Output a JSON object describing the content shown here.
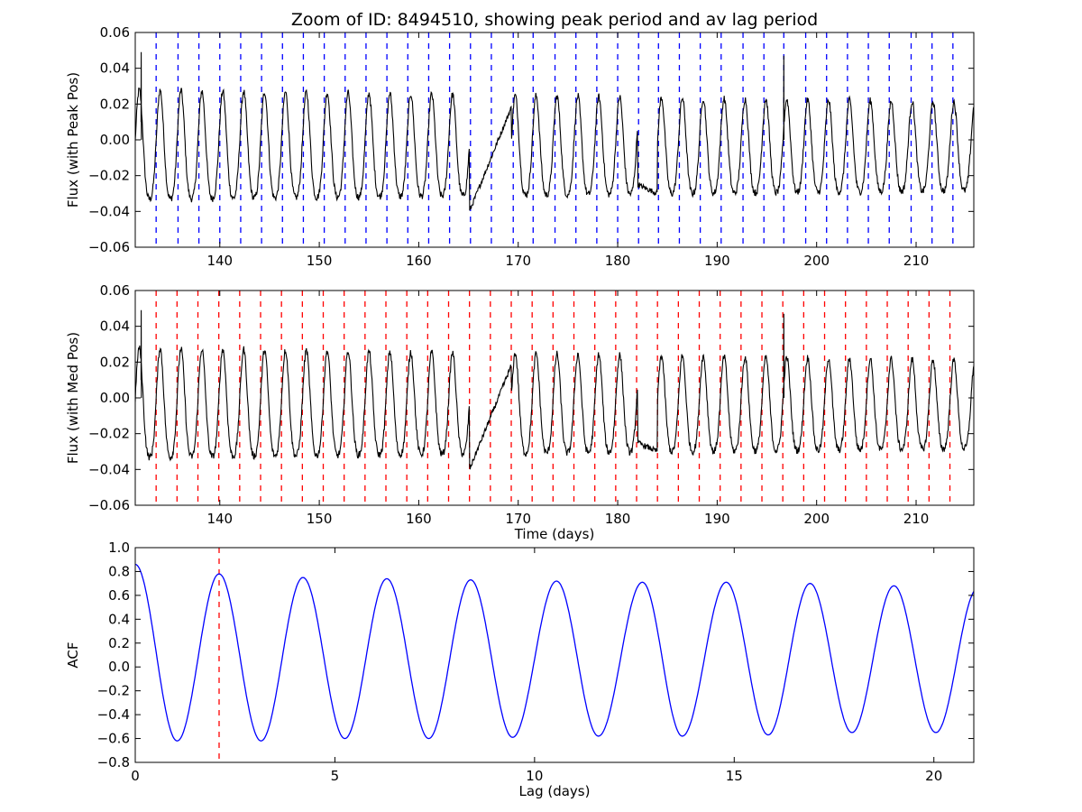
{
  "figure_title": "Zoom of ID: 8494510, showing peak period and av lag period",
  "colors": {
    "flux_line": "#000000",
    "peak_markers": "#0000ff",
    "median_markers": "#ff0000",
    "acf_line": "#0000ff",
    "lag_marker": "#ff0000"
  },
  "chart_data": [
    {
      "type": "line",
      "ylabel": "Flux (with Peak Pos)",
      "xlabel": "",
      "xlim": [
        131.5,
        215.8
      ],
      "ylim": [
        -0.06,
        0.06
      ],
      "xticks": [
        140,
        150,
        160,
        170,
        180,
        190,
        200,
        210
      ],
      "yticks": [
        -0.06,
        -0.04,
        -0.02,
        0.0,
        0.02,
        0.04,
        0.06
      ],
      "ytick_labels": [
        "−0.06",
        "−0.04",
        "−0.02",
        "0.00",
        "0.02",
        "0.04",
        "0.06"
      ],
      "grid": false,
      "series": [
        {
          "style": "solid-black",
          "signal": {
            "period_days": 2.1,
            "phase_peak_days": 134.0,
            "amplitude_start": 0.036,
            "amplitude_end": 0.029,
            "offset": -0.008,
            "samples": 1700
          },
          "segments": [
            {
              "x_from": 165.1,
              "x_to": 169.3,
              "y_from": -0.04,
              "y_to": 0.018
            },
            {
              "x_from": 182.0,
              "x_to": 184.0,
              "y_from": -0.025,
              "y_to": -0.03
            }
          ],
          "spikes": [
            {
              "x": 132.1,
              "y": 0.049
            },
            {
              "x": 196.7,
              "y": 0.047
            }
          ]
        }
      ],
      "vlines": {
        "style": "dashed-blue",
        "x": [
          133.6,
          135.8,
          137.9,
          140.0,
          142.1,
          144.2,
          146.3,
          148.4,
          150.5,
          152.6,
          154.7,
          156.8,
          158.9,
          161.0,
          163.1,
          165.2,
          167.3,
          169.5,
          171.5,
          173.7,
          175.8,
          177.9,
          180.0,
          182.1,
          184.1,
          186.2,
          188.3,
          190.4,
          192.6,
          194.7,
          196.7,
          198.9,
          201.0,
          203.1,
          205.2,
          207.3,
          209.5,
          211.6,
          213.7
        ]
      }
    },
    {
      "type": "line",
      "ylabel": "Flux (with Med Pos)",
      "xlabel": "Time (days)",
      "xlim": [
        131.5,
        215.8
      ],
      "ylim": [
        -0.06,
        0.06
      ],
      "xticks": [
        140,
        150,
        160,
        170,
        180,
        190,
        200,
        210
      ],
      "yticks": [
        -0.06,
        -0.04,
        -0.02,
        0.0,
        0.02,
        0.04,
        0.06
      ],
      "ytick_labels": [
        "−0.06",
        "−0.04",
        "−0.02",
        "0.00",
        "0.02",
        "0.04",
        "0.06"
      ],
      "grid": false,
      "series": [
        {
          "style": "solid-black",
          "signal": {
            "period_days": 2.1,
            "phase_peak_days": 134.0,
            "amplitude_start": 0.036,
            "amplitude_end": 0.029,
            "offset": -0.008,
            "samples": 1700
          },
          "segments": [
            {
              "x_from": 165.1,
              "x_to": 169.3,
              "y_from": -0.04,
              "y_to": 0.018
            },
            {
              "x_from": 182.0,
              "x_to": 184.0,
              "y_from": -0.025,
              "y_to": -0.03
            }
          ],
          "spikes": [
            {
              "x": 132.1,
              "y": 0.049
            },
            {
              "x": 196.7,
              "y": 0.047
            }
          ]
        }
      ],
      "vlines": {
        "style": "dashed-red",
        "x": [
          133.6,
          135.7,
          137.8,
          139.9,
          142.0,
          144.1,
          146.2,
          148.3,
          150.4,
          152.5,
          154.6,
          156.7,
          158.8,
          160.9,
          163.0,
          165.1,
          167.2,
          169.3,
          171.4,
          173.5,
          175.6,
          177.7,
          179.8,
          181.9,
          184.0,
          186.1,
          188.2,
          190.3,
          192.4,
          194.5,
          196.6,
          198.7,
          200.8,
          202.9,
          205.0,
          207.1,
          209.2,
          211.3,
          213.4
        ]
      }
    },
    {
      "type": "line",
      "ylabel": "ACF",
      "xlabel": "Lag (days)",
      "xlim": [
        0,
        21.0
      ],
      "ylim": [
        -0.8,
        1.0
      ],
      "xticks": [
        0,
        5,
        10,
        15,
        20
      ],
      "yticks": [
        -0.8,
        -0.6,
        -0.4,
        -0.2,
        0.0,
        0.2,
        0.4,
        0.6,
        0.8,
        1.0
      ],
      "ytick_labels": [
        "−0.8",
        "−0.6",
        "−0.4",
        "−0.2",
        "0.0",
        "0.2",
        "0.4",
        "0.6",
        "0.8",
        "1.0"
      ],
      "grid": false,
      "series": [
        {
          "style": "solid-blue",
          "peaks": [
            {
              "x": 0.0,
              "y": 0.86
            },
            {
              "x": 2.1,
              "y": 0.78
            },
            {
              "x": 4.2,
              "y": 0.75
            },
            {
              "x": 6.3,
              "y": 0.74
            },
            {
              "x": 8.4,
              "y": 0.73
            },
            {
              "x": 10.55,
              "y": 0.72
            },
            {
              "x": 12.7,
              "y": 0.71
            },
            {
              "x": 14.8,
              "y": 0.71
            },
            {
              "x": 16.9,
              "y": 0.7
            },
            {
              "x": 19.0,
              "y": 0.68
            },
            {
              "x": 21.1,
              "y": 0.66
            }
          ],
          "troughs": [
            {
              "x": 1.05,
              "y": -0.62
            },
            {
              "x": 3.15,
              "y": -0.62
            },
            {
              "x": 5.25,
              "y": -0.6
            },
            {
              "x": 7.35,
              "y": -0.6
            },
            {
              "x": 9.45,
              "y": -0.59
            },
            {
              "x": 11.6,
              "y": -0.58
            },
            {
              "x": 13.7,
              "y": -0.58
            },
            {
              "x": 15.85,
              "y": -0.57
            },
            {
              "x": 17.95,
              "y": -0.55
            },
            {
              "x": 20.05,
              "y": -0.55
            }
          ]
        }
      ],
      "vlines": {
        "style": "dashed-red",
        "x": [
          2.1
        ]
      }
    }
  ]
}
